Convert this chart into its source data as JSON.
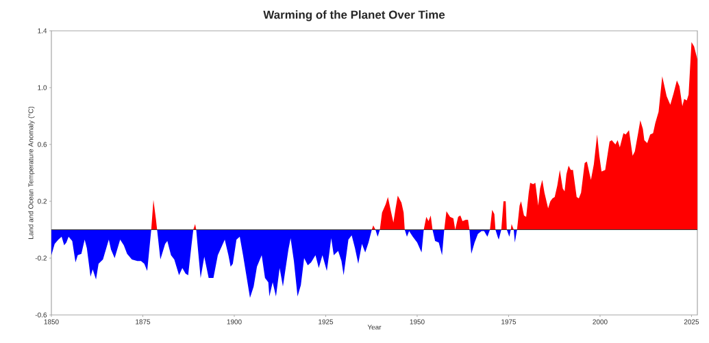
{
  "chart_data": {
    "type": "area",
    "title": "Warming of the Planet Over Time",
    "xlabel": "Year",
    "ylabel": "Land and Ocean Temperature Anomaly (°C)",
    "xlim": [
      1850,
      2026.6
    ],
    "xticks": [
      1850,
      1875,
      1900,
      1925,
      1950,
      1975,
      2000,
      2025
    ],
    "ylim": [
      -0.6,
      1.4
    ],
    "yticks": [
      -0.6,
      -0.2,
      0.2,
      0.6,
      {
        "value": 1.0,
        "label": "1.0"
      },
      1.4
    ],
    "grid": false,
    "ref_lines": [
      {
        "axis": "y",
        "value": 0,
        "color": "#3a3a3a"
      }
    ],
    "series": [
      {
        "color": "#ff0000",
        "x": [
          1877.3,
          1877.9,
          1878.6,
          1878.9,
          1888.8,
          1889.3,
          1889.6,
          1937.6,
          1938.0,
          1938.6,
          1939.8,
          1940.4,
          1941.4,
          1942.0,
          1942.9,
          1943.5,
          1944.1,
          1944.7,
          1945.7,
          1946.3,
          1946.6,
          1951.8,
          1952.5,
          1953.1,
          1953.7,
          1954.2,
          1957.4,
          1958.0,
          1959.0,
          1959.9,
          1960.4,
          1961.2,
          1961.8,
          1962.4,
          1963.3,
          1963.9,
          1964.3,
          1969.9,
          1970.5,
          1971.1,
          1971.4,
          1973.0,
          1973.6,
          1974.2,
          1974.5,
          1975.6,
          1975.8,
          1976.4,
          1977.3,
          1978.0,
          1978.4,
          1979.2,
          1979.8,
          1980.5,
          1980.9,
          1981.7,
          1982.3,
          1983.1,
          1983.6,
          1984.2,
          1984.8,
          1985.8,
          1986.4,
          1987.0,
          1987.6,
          1988.3,
          1989.0,
          1989.8,
          1990.3,
          1990.8,
          1991.4,
          1992.0,
          1992.6,
          1993.6,
          1994.2,
          1994.8,
          1995.8,
          1996.4,
          1997.5,
          1998.3,
          1999.2,
          1999.8,
          2000.4,
          2001.4,
          2002.6,
          2003.2,
          2004.2,
          2004.8,
          2005.4,
          2006.4,
          2007.0,
          2007.9,
          2008.9,
          2009.5,
          2010.4,
          2011.0,
          2011.7,
          2012.1,
          2012.9,
          2013.7,
          2014.5,
          2015.1,
          2016.0,
          2017.0,
          2018.2,
          2019.2,
          2020.1,
          2021.0,
          2021.7,
          2022.5,
          2023.0,
          2023.7,
          2024.2,
          2025.0,
          2025.7,
          2026.3,
          2026.6
        ],
        "values": [
          0,
          0.21,
          0.07,
          0,
          0,
          0.04,
          0,
          0,
          0.03,
          0,
          0,
          0.12,
          0.18,
          0.23,
          0.12,
          0.05,
          0.15,
          0.24,
          0.19,
          0.12,
          0,
          0,
          0.09,
          0.06,
          0.1,
          0,
          0,
          0.13,
          0.09,
          0.08,
          0,
          0.09,
          0.1,
          0.06,
          0.07,
          0.07,
          0,
          0,
          0.14,
          0.11,
          0,
          0,
          0.2,
          0.2,
          0,
          0,
          0.04,
          0,
          0,
          0.17,
          0.2,
          0.1,
          0.09,
          0.26,
          0.33,
          0.32,
          0.33,
          0.17,
          0.29,
          0.35,
          0.26,
          0.15,
          0.2,
          0.22,
          0.23,
          0.31,
          0.42,
          0.29,
          0.27,
          0.39,
          0.45,
          0.42,
          0.42,
          0.23,
          0.22,
          0.26,
          0.47,
          0.48,
          0.35,
          0.46,
          0.67,
          0.52,
          0.41,
          0.42,
          0.62,
          0.63,
          0.6,
          0.63,
          0.58,
          0.68,
          0.67,
          0.7,
          0.52,
          0.55,
          0.68,
          0.77,
          0.71,
          0.63,
          0.61,
          0.67,
          0.68,
          0.75,
          0.83,
          1.08,
          0.94,
          0.88,
          0.96,
          1.05,
          1.01,
          0.87,
          0.92,
          0.91,
          0.95,
          1.32,
          1.29,
          1.23,
          1.2
        ]
      },
      {
        "color": "#0000ff",
        "x": [
          1850.0,
          1850.9,
          1851.9,
          1852.8,
          1853.5,
          1854.1,
          1854.7,
          1855.7,
          1856.6,
          1857.2,
          1858.2,
          1859.1,
          1859.7,
          1860.7,
          1861.3,
          1862.2,
          1862.9,
          1864.1,
          1865.7,
          1866.3,
          1867.3,
          1868.8,
          1869.8,
          1870.7,
          1872.0,
          1873.5,
          1874.5,
          1875.4,
          1876.2,
          1877.0,
          1877.3,
          1878.9,
          1879.8,
          1881.1,
          1881.7,
          1882.7,
          1883.6,
          1884.9,
          1885.8,
          1886.7,
          1887.4,
          1888.3,
          1888.8,
          1889.6,
          1889.9,
          1890.8,
          1891.8,
          1893.0,
          1894.3,
          1895.5,
          1897.4,
          1898.4,
          1899.0,
          1899.6,
          1900.6,
          1901.5,
          1902.4,
          1904.3,
          1905.3,
          1906.2,
          1907.5,
          1908.4,
          1909.3,
          1909.6,
          1910.5,
          1911.4,
          1912.4,
          1913.3,
          1914.8,
          1915.4,
          1916.3,
          1917.3,
          1918.2,
          1919.1,
          1920.1,
          1921.0,
          1922.2,
          1923.1,
          1924.1,
          1925.3,
          1925.9,
          1926.5,
          1927.2,
          1928.4,
          1929.3,
          1929.9,
          1931.2,
          1932.1,
          1933.0,
          1933.9,
          1934.9,
          1935.8,
          1936.7,
          1937.6,
          1938.6,
          1939.2,
          1939.8,
          1946.6,
          1947.2,
          1947.8,
          1948.8,
          1950.0,
          1951.2,
          1951.8,
          1954.2,
          1954.9,
          1955.9,
          1956.8,
          1957.4,
          1964.3,
          1964.8,
          1965.7,
          1966.6,
          1967.6,
          1968.3,
          1969.2,
          1969.9,
          1971.4,
          1972.0,
          1972.3,
          1973.0,
          1974.5,
          1975.2,
          1975.6,
          1976.4,
          1976.7,
          1977.3
        ],
        "values": [
          -0.18,
          -0.1,
          -0.07,
          -0.05,
          -0.11,
          -0.09,
          -0.05,
          -0.08,
          -0.23,
          -0.18,
          -0.17,
          -0.07,
          -0.13,
          -0.33,
          -0.28,
          -0.35,
          -0.24,
          -0.21,
          -0.07,
          -0.14,
          -0.2,
          -0.07,
          -0.11,
          -0.17,
          -0.21,
          -0.22,
          -0.22,
          -0.24,
          -0.29,
          -0.08,
          0,
          0,
          -0.21,
          -0.1,
          -0.08,
          -0.18,
          -0.21,
          -0.32,
          -0.27,
          -0.31,
          -0.32,
          -0.11,
          0,
          0,
          -0.09,
          -0.34,
          -0.19,
          -0.34,
          -0.34,
          -0.18,
          -0.07,
          -0.18,
          -0.26,
          -0.24,
          -0.07,
          -0.05,
          -0.18,
          -0.48,
          -0.4,
          -0.26,
          -0.18,
          -0.34,
          -0.37,
          -0.47,
          -0.37,
          -0.47,
          -0.27,
          -0.4,
          -0.14,
          -0.06,
          -0.22,
          -0.47,
          -0.39,
          -0.2,
          -0.25,
          -0.23,
          -0.18,
          -0.27,
          -0.18,
          -0.29,
          -0.18,
          -0.06,
          -0.18,
          -0.15,
          -0.22,
          -0.32,
          -0.07,
          -0.04,
          -0.13,
          -0.24,
          -0.1,
          -0.16,
          -0.09,
          0,
          0,
          -0.05,
          0,
          0,
          -0.05,
          -0.01,
          -0.05,
          -0.09,
          -0.16,
          0,
          0,
          -0.08,
          -0.09,
          -0.18,
          0,
          0,
          -0.17,
          -0.09,
          -0.03,
          -0.01,
          -0.01,
          -0.05,
          0,
          0,
          -0.05,
          -0.07,
          0,
          0,
          -0.05,
          0,
          0,
          -0.09,
          0
        ]
      }
    ]
  }
}
